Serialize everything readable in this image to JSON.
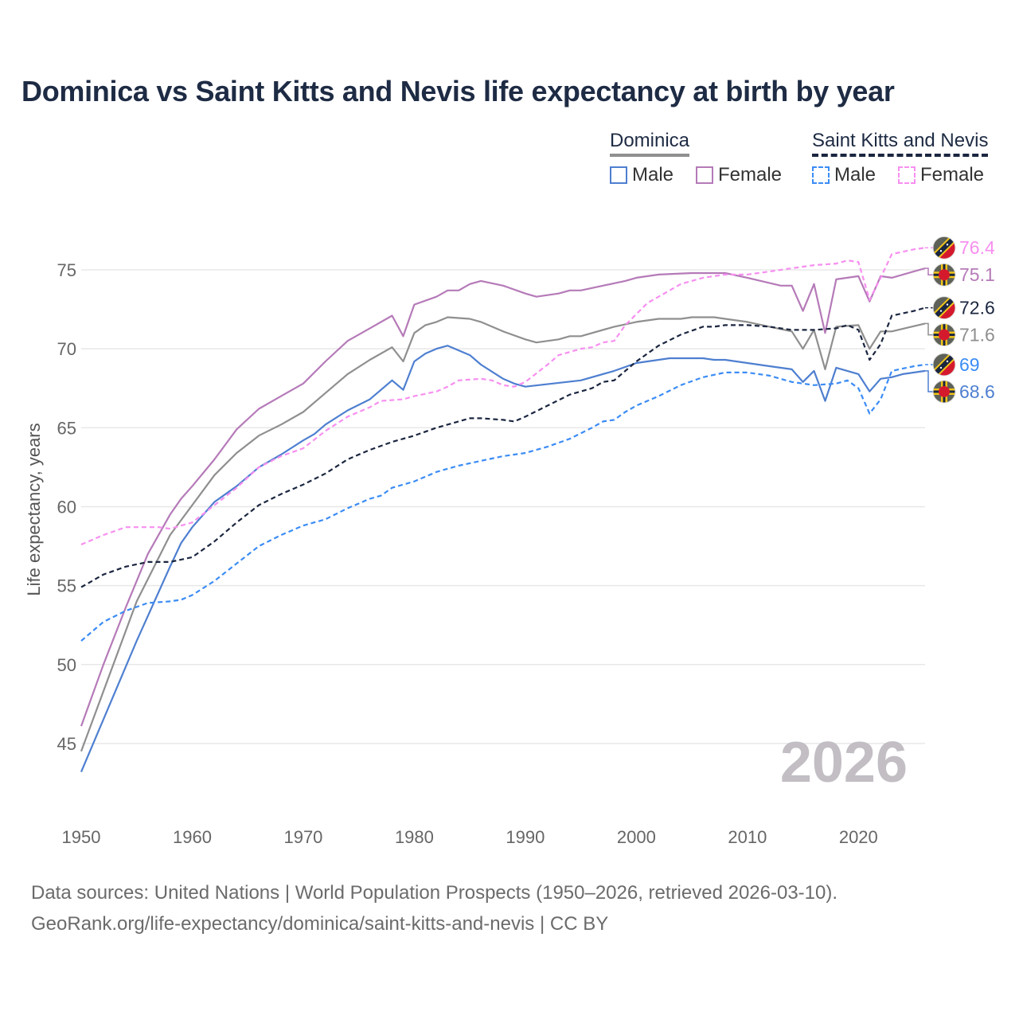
{
  "chart_data": {
    "type": "line",
    "title": "Dominica vs Saint Kitts and Nevis life expectancy at birth by year",
    "xlabel": "",
    "ylabel": "Life expectancy, years",
    "xlim": [
      1950,
      2026
    ],
    "ylim": [
      41,
      78
    ],
    "x_ticks": [
      "1950",
      "1960",
      "1970",
      "1980",
      "1990",
      "2000",
      "2010",
      "2020"
    ],
    "y_ticks": [
      "45",
      "50",
      "55",
      "60",
      "65",
      "70",
      "75"
    ],
    "grid": true,
    "year_watermark": "2026",
    "legend": {
      "placement": "top-right",
      "groups": [
        {
          "name": "Dominica",
          "items": [
            "Male",
            "Female"
          ]
        },
        {
          "name": "Saint Kitts and Nevis",
          "items": [
            "Male",
            "Female"
          ]
        }
      ]
    },
    "series": [
      {
        "name": "Dominica Female",
        "color": "#b57ab8",
        "dashed": false,
        "end_label": "75.1",
        "flag": "dominica",
        "points": [
          [
            1950,
            46.1
          ],
          [
            1952,
            50.0
          ],
          [
            1954,
            53.6
          ],
          [
            1956,
            57.0
          ],
          [
            1958,
            59.5
          ],
          [
            1959,
            60.5
          ],
          [
            1960,
            61.3
          ],
          [
            1962,
            63.0
          ],
          [
            1964,
            64.9
          ],
          [
            1966,
            66.2
          ],
          [
            1968,
            67.0
          ],
          [
            1970,
            67.8
          ],
          [
            1972,
            69.2
          ],
          [
            1974,
            70.5
          ],
          [
            1976,
            71.3
          ],
          [
            1978,
            72.1
          ],
          [
            1979,
            70.8
          ],
          [
            1980,
            72.8
          ],
          [
            1982,
            73.3
          ],
          [
            1983,
            73.7
          ],
          [
            1984,
            73.7
          ],
          [
            1985,
            74.1
          ],
          [
            1986,
            74.3
          ],
          [
            1988,
            74.0
          ],
          [
            1990,
            73.5
          ],
          [
            1991,
            73.3
          ],
          [
            1993,
            73.5
          ],
          [
            1994,
            73.7
          ],
          [
            1995,
            73.7
          ],
          [
            1997,
            74.0
          ],
          [
            1999,
            74.3
          ],
          [
            2000,
            74.5
          ],
          [
            2002,
            74.7
          ],
          [
            2005,
            74.8
          ],
          [
            2008,
            74.8
          ],
          [
            2010,
            74.5
          ],
          [
            2013,
            74.0
          ],
          [
            2014,
            74.0
          ],
          [
            2015,
            72.4
          ],
          [
            2016,
            74.1
          ],
          [
            2017,
            71.0
          ],
          [
            2018,
            74.4
          ],
          [
            2020,
            74.6
          ],
          [
            2021,
            73.0
          ],
          [
            2022,
            74.6
          ],
          [
            2023,
            74.5
          ],
          [
            2026,
            75.1
          ]
        ]
      },
      {
        "name": "Dominica Total",
        "color": "#8f8f8f",
        "dashed": false,
        "end_label": "71.6",
        "flag": "dominica",
        "points": [
          [
            1950,
            44.5
          ],
          [
            1955,
            54.0
          ],
          [
            1958,
            58.2
          ],
          [
            1960,
            60.1
          ],
          [
            1962,
            62.0
          ],
          [
            1964,
            63.4
          ],
          [
            1966,
            64.5
          ],
          [
            1968,
            65.2
          ],
          [
            1970,
            66.0
          ],
          [
            1972,
            67.2
          ],
          [
            1974,
            68.4
          ],
          [
            1976,
            69.3
          ],
          [
            1978,
            70.1
          ],
          [
            1979,
            69.2
          ],
          [
            1980,
            71.0
          ],
          [
            1981,
            71.5
          ],
          [
            1982,
            71.7
          ],
          [
            1983,
            72.0
          ],
          [
            1985,
            71.9
          ],
          [
            1986,
            71.7
          ],
          [
            1988,
            71.1
          ],
          [
            1990,
            70.6
          ],
          [
            1991,
            70.4
          ],
          [
            1993,
            70.6
          ],
          [
            1994,
            70.8
          ],
          [
            1995,
            70.8
          ],
          [
            1998,
            71.4
          ],
          [
            2000,
            71.7
          ],
          [
            2002,
            71.9
          ],
          [
            2004,
            71.9
          ],
          [
            2005,
            72.0
          ],
          [
            2007,
            72.0
          ],
          [
            2008,
            71.9
          ],
          [
            2010,
            71.7
          ],
          [
            2012,
            71.4
          ],
          [
            2014,
            71.1
          ],
          [
            2015,
            70.0
          ],
          [
            2016,
            71.2
          ],
          [
            2017,
            68.7
          ],
          [
            2018,
            71.4
          ],
          [
            2020,
            71.5
          ],
          [
            2021,
            70.0
          ],
          [
            2022,
            71.1
          ],
          [
            2023,
            71.1
          ],
          [
            2026,
            71.6
          ]
        ]
      },
      {
        "name": "Dominica Male",
        "color": "#4e7fd0",
        "dashed": false,
        "end_label": "68.6",
        "flag": "dominica",
        "points": [
          [
            1950,
            43.2
          ],
          [
            1955,
            51.5
          ],
          [
            1958,
            56.2
          ],
          [
            1959,
            57.7
          ],
          [
            1960,
            58.7
          ],
          [
            1962,
            60.3
          ],
          [
            1964,
            61.3
          ],
          [
            1966,
            62.5
          ],
          [
            1968,
            63.3
          ],
          [
            1970,
            64.2
          ],
          [
            1971,
            64.6
          ],
          [
            1972,
            65.2
          ],
          [
            1974,
            66.1
          ],
          [
            1976,
            66.8
          ],
          [
            1978,
            68.0
          ],
          [
            1979,
            67.4
          ],
          [
            1980,
            69.2
          ],
          [
            1981,
            69.7
          ],
          [
            1982,
            70.0
          ],
          [
            1983,
            70.2
          ],
          [
            1985,
            69.6
          ],
          [
            1986,
            69.0
          ],
          [
            1988,
            68.1
          ],
          [
            1989,
            67.8
          ],
          [
            1990,
            67.6
          ],
          [
            1995,
            68.0
          ],
          [
            1998,
            68.6
          ],
          [
            2000,
            69.1
          ],
          [
            2003,
            69.4
          ],
          [
            2006,
            69.4
          ],
          [
            2007,
            69.3
          ],
          [
            2008,
            69.3
          ],
          [
            2012,
            68.9
          ],
          [
            2014,
            68.7
          ],
          [
            2015,
            67.9
          ],
          [
            2016,
            68.6
          ],
          [
            2017,
            66.7
          ],
          [
            2018,
            68.8
          ],
          [
            2020,
            68.4
          ],
          [
            2021,
            67.3
          ],
          [
            2022,
            68.1
          ],
          [
            2023,
            68.2
          ],
          [
            2024,
            68.4
          ],
          [
            2026,
            68.6
          ]
        ]
      },
      {
        "name": "Saint Kitts and Nevis Female",
        "color": "#f78ff0",
        "dashed": true,
        "end_label": "76.4",
        "flag": "skn",
        "points": [
          [
            1950,
            57.6
          ],
          [
            1952,
            58.2
          ],
          [
            1954,
            58.7
          ],
          [
            1956,
            58.7
          ],
          [
            1957,
            58.7
          ],
          [
            1958,
            58.6
          ],
          [
            1960,
            59.0
          ],
          [
            1962,
            60.1
          ],
          [
            1964,
            61.2
          ],
          [
            1966,
            62.5
          ],
          [
            1968,
            63.2
          ],
          [
            1970,
            63.7
          ],
          [
            1972,
            64.8
          ],
          [
            1974,
            65.7
          ],
          [
            1976,
            66.3
          ],
          [
            1977,
            66.7
          ],
          [
            1979,
            66.8
          ],
          [
            1980,
            67.0
          ],
          [
            1982,
            67.3
          ],
          [
            1983,
            67.6
          ],
          [
            1984,
            68.0
          ],
          [
            1986,
            68.1
          ],
          [
            1987,
            68.0
          ],
          [
            1988,
            67.7
          ],
          [
            1989,
            67.6
          ],
          [
            1990,
            67.9
          ],
          [
            1992,
            69.0
          ],
          [
            1993,
            69.6
          ],
          [
            1995,
            70.0
          ],
          [
            1996,
            70.1
          ],
          [
            1997,
            70.4
          ],
          [
            1998,
            70.5
          ],
          [
            1999,
            71.5
          ],
          [
            2000,
            72.2
          ],
          [
            2001,
            72.9
          ],
          [
            2003,
            73.7
          ],
          [
            2004,
            74.1
          ],
          [
            2006,
            74.5
          ],
          [
            2008,
            74.7
          ],
          [
            2010,
            74.7
          ],
          [
            2012,
            74.9
          ],
          [
            2014,
            75.1
          ],
          [
            2016,
            75.3
          ],
          [
            2018,
            75.4
          ],
          [
            2019,
            75.6
          ],
          [
            2020,
            75.5
          ],
          [
            2021,
            73.1
          ],
          [
            2022,
            74.5
          ],
          [
            2023,
            76.0
          ],
          [
            2025,
            76.3
          ],
          [
            2026,
            76.4
          ]
        ]
      },
      {
        "name": "Saint Kitts and Nevis Total",
        "color": "#1b2640",
        "dashed": true,
        "end_label": "72.6",
        "flag": "skn",
        "points": [
          [
            1950,
            54.9
          ],
          [
            1952,
            55.7
          ],
          [
            1954,
            56.2
          ],
          [
            1956,
            56.5
          ],
          [
            1958,
            56.5
          ],
          [
            1960,
            56.8
          ],
          [
            1962,
            57.8
          ],
          [
            1964,
            59.0
          ],
          [
            1966,
            60.1
          ],
          [
            1968,
            60.8
          ],
          [
            1970,
            61.4
          ],
          [
            1972,
            62.1
          ],
          [
            1974,
            63.0
          ],
          [
            1976,
            63.6
          ],
          [
            1978,
            64.1
          ],
          [
            1980,
            64.5
          ],
          [
            1982,
            65.0
          ],
          [
            1984,
            65.4
          ],
          [
            1985,
            65.6
          ],
          [
            1986,
            65.6
          ],
          [
            1988,
            65.5
          ],
          [
            1989,
            65.4
          ],
          [
            1990,
            65.7
          ],
          [
            1992,
            66.4
          ],
          [
            1994,
            67.1
          ],
          [
            1996,
            67.5
          ],
          [
            1997,
            67.9
          ],
          [
            1998,
            68.0
          ],
          [
            2000,
            69.2
          ],
          [
            2002,
            70.2
          ],
          [
            2004,
            70.9
          ],
          [
            2006,
            71.4
          ],
          [
            2007,
            71.4
          ],
          [
            2008,
            71.5
          ],
          [
            2010,
            71.5
          ],
          [
            2012,
            71.4
          ],
          [
            2014,
            71.2
          ],
          [
            2016,
            71.2
          ],
          [
            2018,
            71.3
          ],
          [
            2019,
            71.5
          ],
          [
            2020,
            71.2
          ],
          [
            2021,
            69.3
          ],
          [
            2022,
            70.3
          ],
          [
            2023,
            72.1
          ],
          [
            2025,
            72.4
          ],
          [
            2026,
            72.6
          ]
        ]
      },
      {
        "name": "Saint Kitts and Nevis Male",
        "color": "#3b8cf5",
        "dashed": true,
        "end_label": "69",
        "flag": "skn",
        "points": [
          [
            1950,
            51.5
          ],
          [
            1952,
            52.7
          ],
          [
            1954,
            53.4
          ],
          [
            1956,
            53.9
          ],
          [
            1958,
            54.0
          ],
          [
            1959,
            54.1
          ],
          [
            1960,
            54.4
          ],
          [
            1962,
            55.3
          ],
          [
            1964,
            56.4
          ],
          [
            1966,
            57.5
          ],
          [
            1968,
            58.2
          ],
          [
            1970,
            58.8
          ],
          [
            1972,
            59.2
          ],
          [
            1974,
            59.9
          ],
          [
            1976,
            60.5
          ],
          [
            1977,
            60.7
          ],
          [
            1978,
            61.2
          ],
          [
            1980,
            61.6
          ],
          [
            1982,
            62.2
          ],
          [
            1984,
            62.6
          ],
          [
            1986,
            62.9
          ],
          [
            1988,
            63.2
          ],
          [
            1990,
            63.4
          ],
          [
            1992,
            63.8
          ],
          [
            1994,
            64.3
          ],
          [
            1996,
            65.0
          ],
          [
            1997,
            65.4
          ],
          [
            1998,
            65.5
          ],
          [
            1999,
            66.0
          ],
          [
            2000,
            66.4
          ],
          [
            2002,
            67.0
          ],
          [
            2004,
            67.7
          ],
          [
            2006,
            68.2
          ],
          [
            2008,
            68.5
          ],
          [
            2010,
            68.5
          ],
          [
            2012,
            68.3
          ],
          [
            2014,
            67.9
          ],
          [
            2016,
            67.7
          ],
          [
            2018,
            67.8
          ],
          [
            2019,
            68.0
          ],
          [
            2020,
            67.5
          ],
          [
            2021,
            65.9
          ],
          [
            2022,
            66.8
          ],
          [
            2023,
            68.6
          ],
          [
            2025,
            68.9
          ],
          [
            2026,
            69.0
          ]
        ]
      }
    ]
  },
  "legend": {
    "dominica": "Dominica",
    "skn": "Saint Kitts and Nevis",
    "male": "Male",
    "female": "Female",
    "colors": {
      "dom_male": "#4e7fd0",
      "dom_female": "#b57ab8",
      "skn_male": "#3b8cf5",
      "skn_female": "#f78ff0"
    }
  },
  "footer": {
    "line1": "Data sources: United Nations | World Population Prospects (1950–2026, retrieved 2026-03-10).",
    "line2": "GeoRank.org/life-expectancy/dominica/saint-kitts-and-nevis | CC BY"
  }
}
